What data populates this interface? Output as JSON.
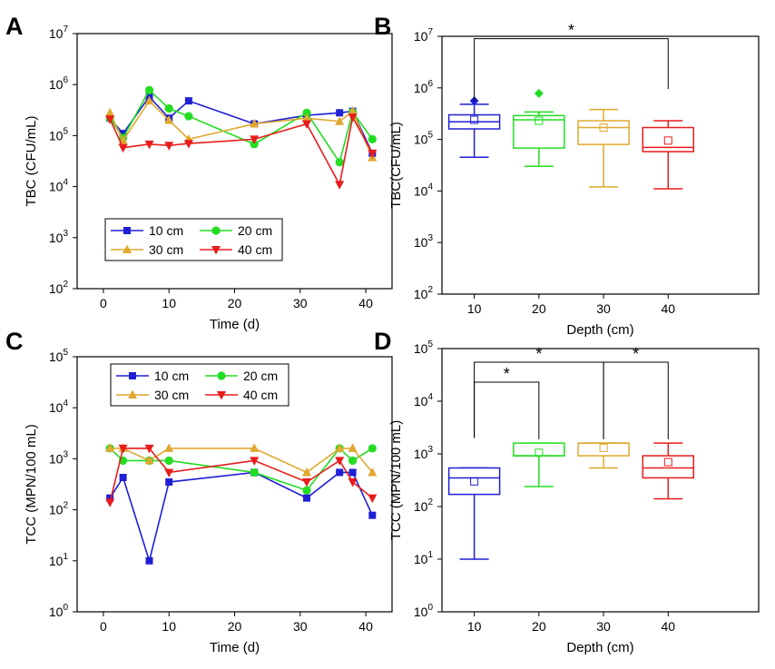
{
  "chart_data": [
    {
      "panel": "A",
      "type": "line",
      "xlabel": "Time (d)",
      "ylabel": "TBC (CFU/mL)",
      "xlim": [
        -4,
        44
      ],
      "xticks": [
        0,
        10,
        20,
        30,
        40
      ],
      "ylim": [
        100,
        10000000
      ],
      "yscale": "log",
      "ytick_labels": [
        {
          "exp": 2,
          "base": "10",
          "sup": "2"
        },
        {
          "exp": 3,
          "base": "10",
          "sup": "3"
        },
        {
          "exp": 4,
          "base": "10",
          "sup": "4"
        },
        {
          "exp": 5,
          "base": "10",
          "sup": "5"
        },
        {
          "exp": 6,
          "base": "10",
          "sup": "6"
        },
        {
          "exp": 7,
          "base": "10",
          "sup": "7"
        }
      ],
      "legend_position": "lower-middle",
      "series": [
        {
          "name": "10 cm",
          "color": "#1f1fd6",
          "marker": "square",
          "points": [
            [
              1,
              220000
            ],
            [
              3,
              110000
            ],
            [
              7,
              580000
            ],
            [
              10,
              220000
            ],
            [
              13,
              480000
            ],
            [
              23,
              170000
            ],
            [
              31,
              250000
            ],
            [
              36,
              280000
            ],
            [
              38,
              300000
            ],
            [
              41,
              45000
            ]
          ]
        },
        {
          "name": "20 cm",
          "color": "#22dd22",
          "marker": "circle",
          "points": [
            [
              1,
              220000
            ],
            [
              3,
              90000
            ],
            [
              7,
              780000
            ],
            [
              10,
              340000
            ],
            [
              13,
              240000
            ],
            [
              23,
              68000
            ],
            [
              31,
              280000
            ],
            [
              36,
              30000
            ],
            [
              38,
              290000
            ],
            [
              41,
              85000
            ]
          ]
        },
        {
          "name": "30 cm",
          "color": "#e0a82e",
          "marker": "triangle-up",
          "points": [
            [
              1,
              280000
            ],
            [
              3,
              80000
            ],
            [
              7,
              480000
            ],
            [
              10,
              200000
            ],
            [
              13,
              85000
            ],
            [
              23,
              170000
            ],
            [
              31,
              220000
            ],
            [
              36,
              190000
            ],
            [
              38,
              300000
            ],
            [
              41,
              37000
            ]
          ]
        },
        {
          "name": "40 cm",
          "color": "#e81c1c",
          "marker": "triangle-down",
          "points": [
            [
              1,
              210000
            ],
            [
              3,
              58000
            ],
            [
              7,
              68000
            ],
            [
              10,
              64000
            ],
            [
              13,
              70000
            ],
            [
              23,
              85000
            ],
            [
              31,
              170000
            ],
            [
              36,
              11000
            ],
            [
              38,
              230000
            ],
            [
              41,
              45000
            ]
          ]
        }
      ]
    },
    {
      "panel": "B",
      "type": "box",
      "xlabel": "Depth (cm)",
      "ylabel": "TBC(CFU/mL)",
      "categories": [
        "10",
        "20",
        "30",
        "40"
      ],
      "ylim": [
        100,
        10000000
      ],
      "yscale": "log",
      "ytick_labels": [
        {
          "exp": 2,
          "base": "10",
          "sup": "2"
        },
        {
          "exp": 3,
          "base": "10",
          "sup": "3"
        },
        {
          "exp": 4,
          "base": "10",
          "sup": "4"
        },
        {
          "exp": 5,
          "base": "10",
          "sup": "5"
        },
        {
          "exp": 6,
          "base": "10",
          "sup": "6"
        },
        {
          "exp": 7,
          "base": "10",
          "sup": "7"
        }
      ],
      "boxes": [
        {
          "category": "10",
          "color": "#1f1fd6",
          "whisker_low": 45000,
          "q1": 160000,
          "median": 220000,
          "q3": 300000,
          "whisker_high": 480000,
          "mean": 240000,
          "outliers": [
            560000
          ]
        },
        {
          "category": "20",
          "color": "#22dd22",
          "whisker_low": 30000,
          "q1": 68000,
          "median": 240000,
          "q3": 290000,
          "whisker_high": 340000,
          "mean": 230000,
          "outliers": [
            780000
          ]
        },
        {
          "category": "30",
          "color": "#e0a82e",
          "whisker_low": 12000,
          "q1": 80000,
          "median": 170000,
          "q3": 230000,
          "whisker_high": 380000,
          "mean": 170000,
          "outliers": []
        },
        {
          "category": "40",
          "color": "#e81c1c",
          "whisker_low": 11000,
          "q1": 58000,
          "median": 70000,
          "q3": 170000,
          "whisker_high": 230000,
          "mean": 95000,
          "outliers": []
        }
      ],
      "significance": [
        {
          "from": "10",
          "to": "40",
          "label": "*",
          "bracket_y": 9000000,
          "left_drop": 550000,
          "right_drop": 950000
        }
      ]
    },
    {
      "panel": "C",
      "type": "line",
      "xlabel": "Time (d)",
      "ylabel": "TCC (MPN/100 mL)",
      "xlim": [
        -4,
        44
      ],
      "xticks": [
        0,
        10,
        20,
        30,
        40
      ],
      "ylim": [
        1,
        100000
      ],
      "yscale": "log",
      "ytick_labels": [
        {
          "exp": 0,
          "base": "10",
          "sup": "0"
        },
        {
          "exp": 1,
          "base": "10",
          "sup": "1"
        },
        {
          "exp": 2,
          "base": "10",
          "sup": "2"
        },
        {
          "exp": 3,
          "base": "10",
          "sup": "3"
        },
        {
          "exp": 4,
          "base": "10",
          "sup": "4"
        },
        {
          "exp": 5,
          "base": "10",
          "sup": "5"
        }
      ],
      "legend_position": "upper-middle",
      "series": [
        {
          "name": "10 cm",
          "color": "#1f1fd6",
          "marker": "square",
          "points": [
            [
              1,
              170
            ],
            [
              3,
              430
            ],
            [
              7,
              10
            ],
            [
              10,
              350
            ],
            [
              23,
              540
            ],
            [
              31,
              170
            ],
            [
              36,
              540
            ],
            [
              38,
              540
            ],
            [
              41,
              78
            ]
          ]
        },
        {
          "name": "20 cm",
          "color": "#22dd22",
          "marker": "circle",
          "points": [
            [
              1,
              1600
            ],
            [
              3,
              920
            ],
            [
              7,
              920
            ],
            [
              10,
              920
            ],
            [
              23,
              540
            ],
            [
              31,
              240
            ],
            [
              36,
              1600
            ],
            [
              38,
              920
            ],
            [
              41,
              1600
            ]
          ]
        },
        {
          "name": "30 cm",
          "color": "#e0a82e",
          "marker": "triangle-up",
          "points": [
            [
              1,
              1600
            ],
            [
              3,
              1600
            ],
            [
              7,
              920
            ],
            [
              10,
              1600
            ],
            [
              23,
              1600
            ],
            [
              31,
              540
            ],
            [
              36,
              1600
            ],
            [
              38,
              1600
            ],
            [
              41,
              540
            ]
          ]
        },
        {
          "name": "40 cm",
          "color": "#e81c1c",
          "marker": "triangle-down",
          "points": [
            [
              1,
              140
            ],
            [
              3,
              1600
            ],
            [
              7,
              1600
            ],
            [
              10,
              540
            ],
            [
              23,
              920
            ],
            [
              31,
              350
            ],
            [
              36,
              920
            ],
            [
              38,
              350
            ],
            [
              41,
              170
            ]
          ]
        }
      ]
    },
    {
      "panel": "D",
      "type": "box",
      "xlabel": "Depth (cm)",
      "ylabel": "TCC (MPN/100 mL)",
      "categories": [
        "10",
        "20",
        "30",
        "40"
      ],
      "ylim": [
        1,
        100000
      ],
      "yscale": "log",
      "ytick_labels": [
        {
          "exp": 0,
          "base": "10",
          "sup": "0"
        },
        {
          "exp": 1,
          "base": "10",
          "sup": "1"
        },
        {
          "exp": 2,
          "base": "10",
          "sup": "2"
        },
        {
          "exp": 3,
          "base": "10",
          "sup": "3"
        },
        {
          "exp": 4,
          "base": "10",
          "sup": "4"
        },
        {
          "exp": 5,
          "base": "10",
          "sup": "5"
        }
      ],
      "boxes": [
        {
          "category": "10",
          "color": "#1f1fd6",
          "whisker_low": 10,
          "q1": 170,
          "median": 350,
          "q3": 540,
          "whisker_high": 540,
          "mean": 300,
          "outliers": []
        },
        {
          "category": "20",
          "color": "#22dd22",
          "whisker_low": 240,
          "q1": 920,
          "median": 920,
          "q3": 1600,
          "whisker_high": 1600,
          "mean": 1050,
          "outliers": []
        },
        {
          "category": "30",
          "color": "#e0a82e",
          "whisker_low": 540,
          "q1": 920,
          "median": 1600,
          "q3": 1600,
          "whisker_high": 1600,
          "mean": 1300,
          "outliers": []
        },
        {
          "category": "40",
          "color": "#e81c1c",
          "whisker_low": 140,
          "q1": 350,
          "median": 540,
          "q3": 920,
          "whisker_high": 1600,
          "mean": 700,
          "outliers": []
        }
      ],
      "significance": [
        {
          "from": "10",
          "to": "30",
          "label": "*",
          "bracket_y": 55000,
          "left_drop": 2000,
          "right_drop": 1900
        },
        {
          "from": "10",
          "to": "20",
          "label": "*",
          "bracket_y": 23000,
          "left_drop": 2000,
          "right_drop": 1900
        },
        {
          "from": "30",
          "to": "40",
          "label": "*",
          "bracket_y": 55000,
          "left_drop": 1900,
          "right_drop": 1900
        }
      ]
    }
  ]
}
